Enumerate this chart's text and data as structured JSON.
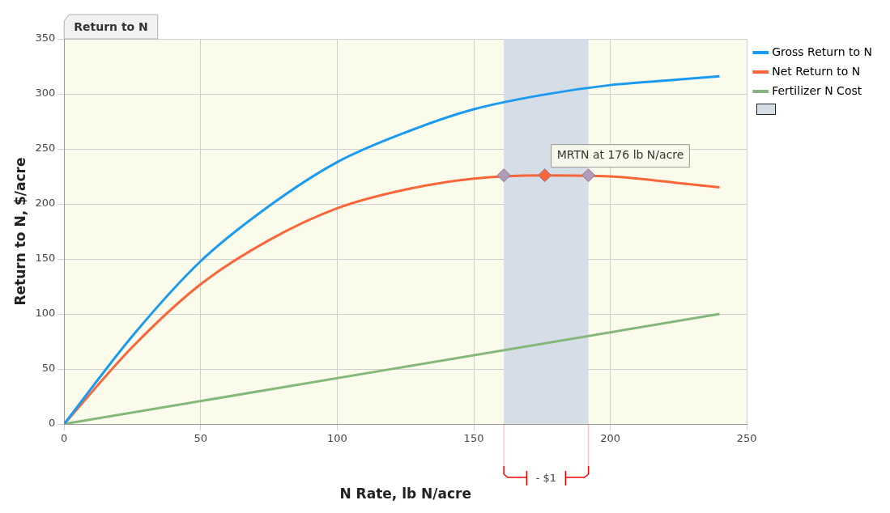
{
  "chart_data": {
    "type": "line",
    "title": "Return to N",
    "xlabel": "N Rate, lb N/acre",
    "ylabel": "Return to N, $/acre",
    "series": [
      {
        "name": "Gross Return to N",
        "color": "#1a9af0",
        "x": [
          0,
          25,
          50,
          75,
          100,
          125,
          150,
          175,
          200,
          225,
          240
        ],
        "values": [
          0,
          80,
          148,
          198,
          238,
          265,
          286,
          299,
          308,
          313,
          316
        ]
      },
      {
        "name": "Net Return to N",
        "color": "#f8663a",
        "x": [
          0,
          25,
          50,
          75,
          100,
          125,
          150,
          175,
          200,
          225,
          240
        ],
        "values": [
          0,
          70,
          127,
          167,
          196,
          213,
          223,
          226,
          225,
          219,
          215
        ]
      },
      {
        "name": "Fertilizer N Cost",
        "color": "#84b87a",
        "x": [
          0,
          240
        ],
        "values": [
          0,
          100
        ]
      },
      {
        "type": "scatter",
        "marker": "diamond",
        "x": [
          161,
          176,
          192
        ],
        "values": [
          226,
          226,
          226
        ],
        "colors": [
          "#b09ab8",
          "#f8663a",
          "#b09ab8"
        ]
      }
    ],
    "bands": [
      {
        "axis": "x",
        "from": 161,
        "to": 192,
        "color": "#d5dde6"
      }
    ],
    "annotations": [
      {
        "text": "MRTN at 176 lb N/acre",
        "x": 176,
        "y": 226
      },
      "- $1"
    ],
    "xlim": [
      0,
      250
    ],
    "xticks": [
      0,
      50,
      100,
      150,
      200,
      250
    ],
    "ylim": [
      0,
      350
    ],
    "yticks": [
      0,
      50,
      100,
      150,
      200,
      250,
      300,
      350
    ],
    "grid": true,
    "legend": "top right",
    "marker": "none",
    "line_style": "solid"
  }
}
